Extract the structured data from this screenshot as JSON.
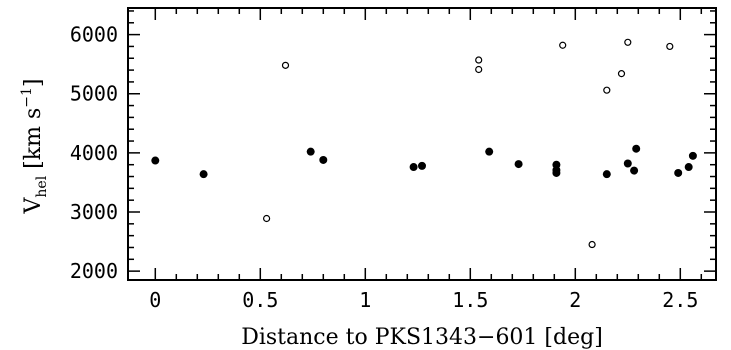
{
  "chart_data": {
    "type": "scatter",
    "xlabel": "Distance to PKS1343−601 [deg]",
    "ylabel": {
      "prefix": "V",
      "subscript": "hel",
      "units_open": " [km s",
      "superscript": "−1",
      "units_close": "]"
    },
    "xlim": [
      -0.13,
      2.67
    ],
    "ylim": [
      1850,
      6450
    ],
    "x_ticks": [
      0,
      0.5,
      1,
      1.5,
      2,
      2.5
    ],
    "x_tick_labels": [
      "0",
      "0.5",
      "1",
      "1.5",
      "2",
      "2.5"
    ],
    "y_ticks": [
      2000,
      3000,
      4000,
      5000,
      6000
    ],
    "y_tick_labels": [
      "2000",
      "3000",
      "4000",
      "5000",
      "6000"
    ],
    "grid": false,
    "series": [
      {
        "marker": "filled",
        "points": [
          [
            0.0,
            3870
          ],
          [
            0.23,
            3640
          ],
          [
            0.74,
            4020
          ],
          [
            0.8,
            3880
          ],
          [
            1.23,
            3760
          ],
          [
            1.27,
            3780
          ],
          [
            1.59,
            4020
          ],
          [
            1.73,
            3810
          ],
          [
            1.91,
            3800
          ],
          [
            1.91,
            3710
          ],
          [
            1.91,
            3660
          ],
          [
            2.15,
            3640
          ],
          [
            2.25,
            3820
          ],
          [
            2.28,
            3700
          ],
          [
            2.29,
            4070
          ],
          [
            2.49,
            3660
          ],
          [
            2.54,
            3760
          ],
          [
            2.56,
            3950
          ]
        ]
      },
      {
        "marker": "open",
        "points": [
          [
            0.53,
            2890
          ],
          [
            0.62,
            5480
          ],
          [
            1.54,
            5570
          ],
          [
            1.54,
            5410
          ],
          [
            1.94,
            5820
          ],
          [
            2.08,
            2450
          ],
          [
            2.15,
            5060
          ],
          [
            2.22,
            5340
          ],
          [
            2.25,
            5870
          ],
          [
            2.45,
            5800
          ]
        ]
      }
    ]
  }
}
